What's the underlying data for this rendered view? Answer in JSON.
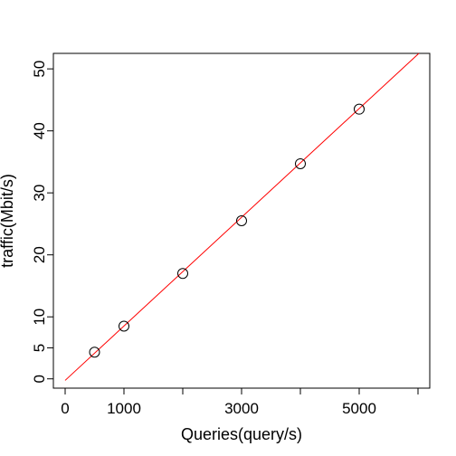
{
  "chart_data": {
    "type": "scatter",
    "title": "",
    "xlabel": "Queries(query/s)",
    "ylabel": "traffic(Mbit/s)",
    "xlim": [
      -200,
      6200
    ],
    "ylim": [
      -1.5,
      52.5
    ],
    "x_ticks": [
      0,
      1000,
      2000,
      3000,
      4000,
      5000,
      6000
    ],
    "x_tick_labels": [
      "0",
      "1000",
      "",
      "3000",
      "",
      "5000",
      ""
    ],
    "y_ticks": [
      0,
      5,
      10,
      20,
      30,
      40,
      50
    ],
    "y_tick_labels": [
      "0",
      "5",
      "10",
      "20",
      "30",
      "40",
      "50"
    ],
    "grid": false,
    "series": [
      {
        "marker": "open-circle",
        "color": "#000000",
        "x": [
          500,
          1000,
          2000,
          3000,
          4000,
          5000
        ],
        "y": [
          4.3,
          8.5,
          17.0,
          25.5,
          34.7,
          43.5
        ]
      }
    ],
    "fit_line": {
      "color": "#ff0000",
      "slope": 0.00877,
      "intercept": -0.25
    }
  }
}
